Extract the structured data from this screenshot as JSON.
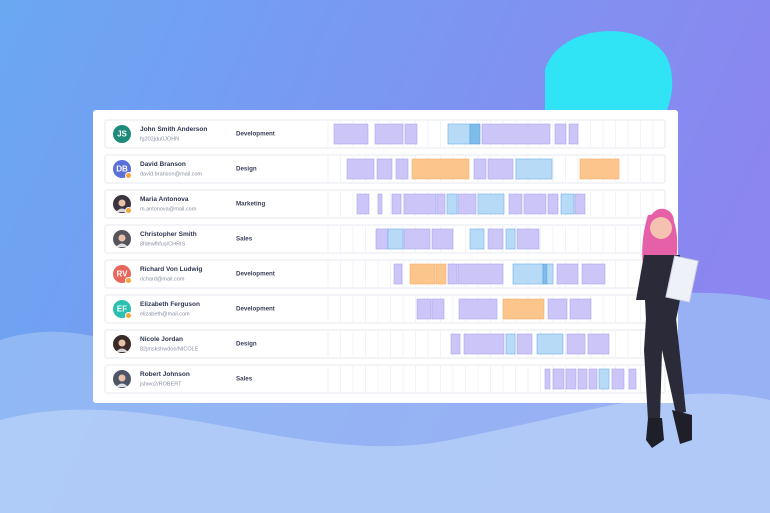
{
  "rows": [
    {
      "initials": "JS",
      "name": "John Smith Anderson",
      "username": "fg202jdu0JOHN",
      "department": "Development"
    },
    {
      "initials": "DB",
      "name": "David Branson",
      "username": "david.branson@mail.com",
      "department": "Design"
    },
    {
      "name": "Maria Antonova",
      "username": "m.antonova@mail.com",
      "department": "Marketing"
    },
    {
      "name": "Christopher Smith",
      "username": "8fdewfhfus/CHRIS",
      "department": "Sales"
    },
    {
      "initials": "RV",
      "name": "Richard Von Ludwig",
      "username": "richard@mail.com",
      "department": "Development"
    },
    {
      "initials": "EF",
      "name": "Elizabeth Ferguson",
      "username": "elizabeth@mail.com",
      "department": "Development"
    },
    {
      "name": "Nicole Jordan",
      "username": "82jmskshwdoo/NICOLE",
      "department": "Design"
    },
    {
      "name": "Robert Johnson",
      "username": "jshwo2/ROBERT",
      "department": "Sales"
    }
  ]
}
